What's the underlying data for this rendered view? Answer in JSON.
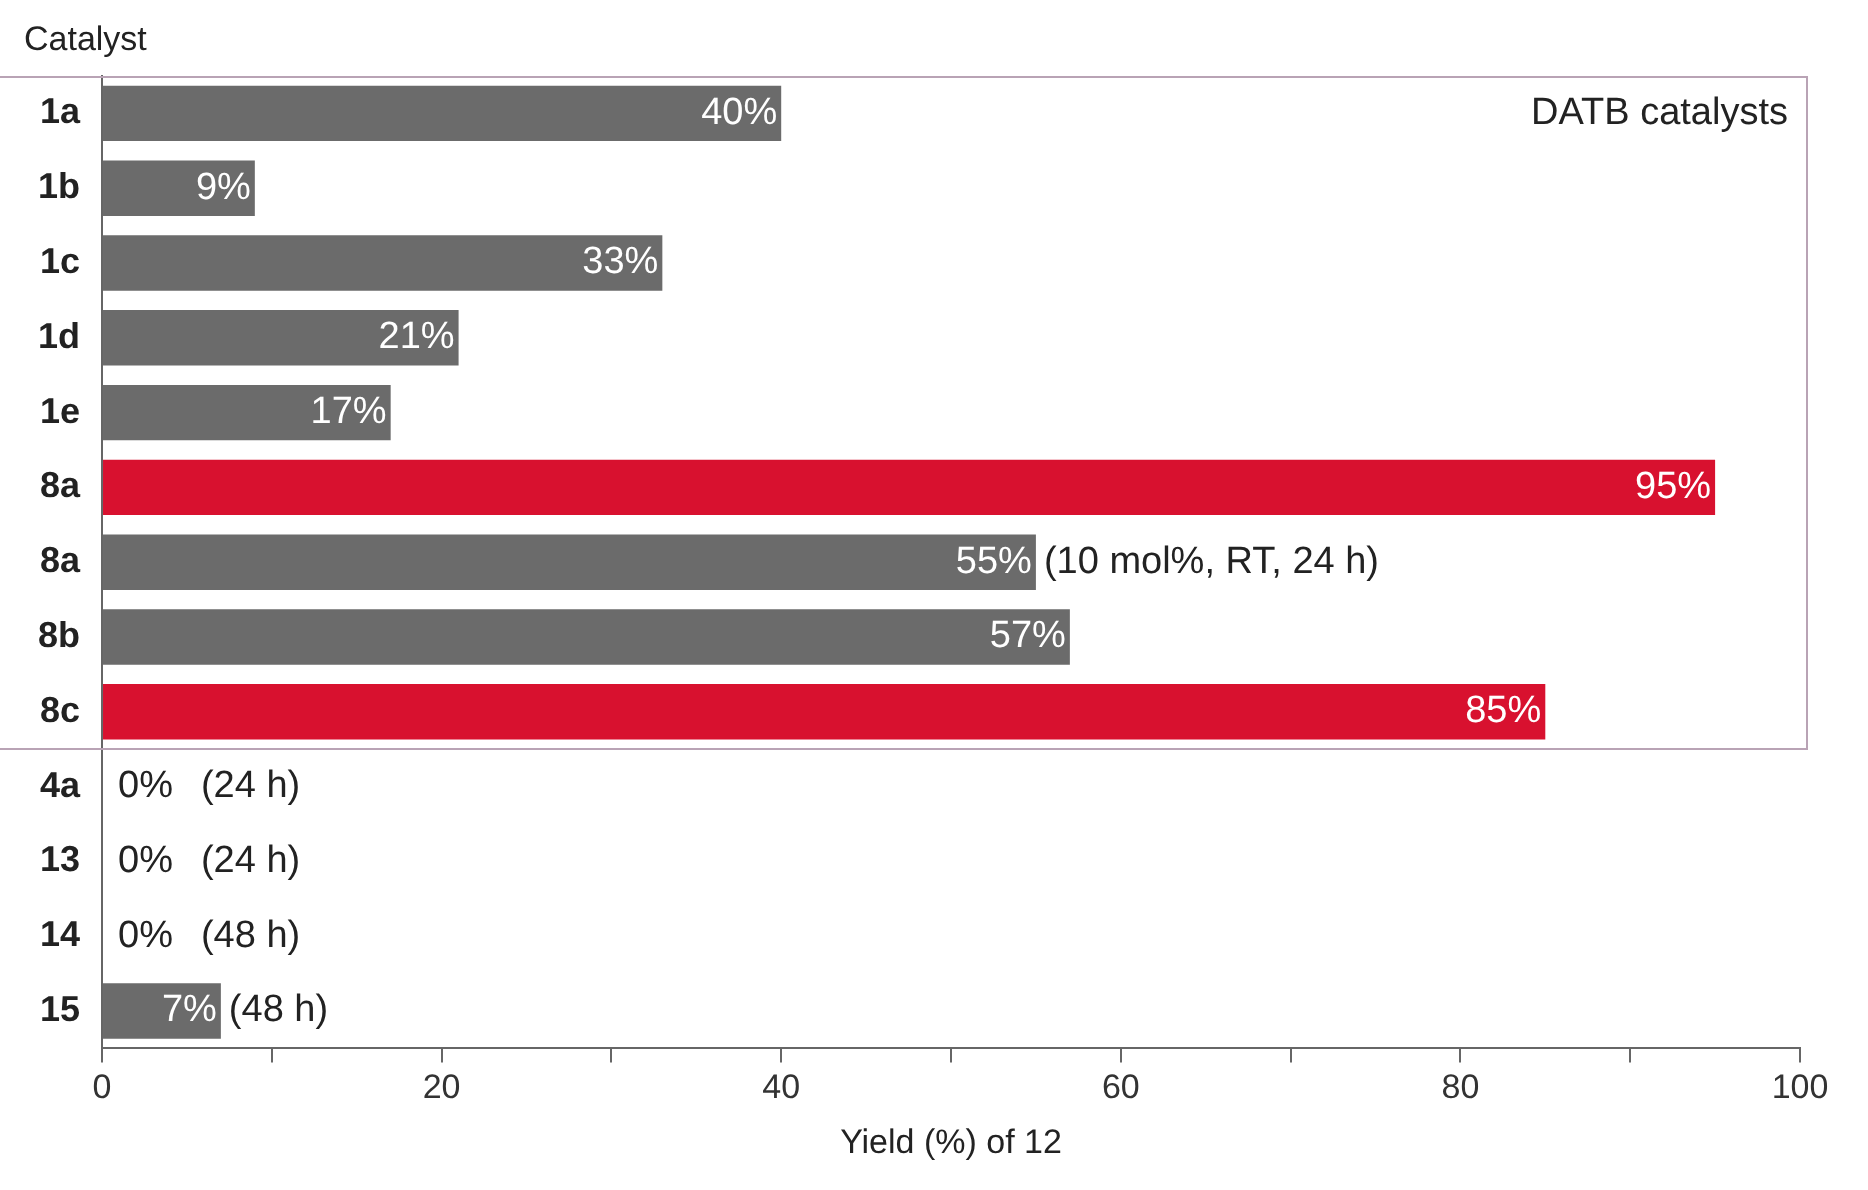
{
  "chart_data": {
    "type": "bar",
    "orientation": "horizontal",
    "ylabel": "Catalyst",
    "xlabel": "Yield (%) of 12",
    "categories": [
      "1a",
      "1b",
      "1c",
      "1d",
      "1e",
      "8a",
      "8a",
      "8b",
      "8c",
      "4a",
      "13",
      "14",
      "15"
    ],
    "values": [
      40,
      9,
      33,
      21,
      17,
      95,
      55,
      57,
      85,
      0,
      0,
      0,
      7
    ],
    "colors": [
      "#6b6b6b",
      "#6b6b6b",
      "#6b6b6b",
      "#6b6b6b",
      "#6b6b6b",
      "#d8112f",
      "#6b6b6b",
      "#6b6b6b",
      "#d8112f",
      "#6b6b6b",
      "#6b6b6b",
      "#6b6b6b",
      "#6b6b6b"
    ],
    "value_labels": [
      "40%",
      "9%",
      "33%",
      "21%",
      "17%",
      "95%",
      "55%",
      "57%",
      "85%",
      "0%",
      "0%",
      "0%",
      "7%"
    ],
    "annotations": [
      "DATB catalysts",
      {
        "text": "(10 mol%, RT, 24 h)",
        "x": 55,
        "y": "8a"
      },
      "(24 h)",
      "(24 h)",
      "(48 h)",
      {
        "text": "(48 h)",
        "x": 7,
        "y": "15"
      }
    ],
    "xlim": [
      0,
      100
    ],
    "xticks": [
      0,
      {
        "value": 10,
        "label": null
      },
      20,
      {
        "value": 30,
        "label": null
      },
      40,
      {
        "value": 50,
        "label": null
      },
      60,
      {
        "value": 70,
        "label": null
      },
      80,
      {
        "value": 90,
        "label": null
      },
      100
    ],
    "grid": false,
    "legend": false
  }
}
